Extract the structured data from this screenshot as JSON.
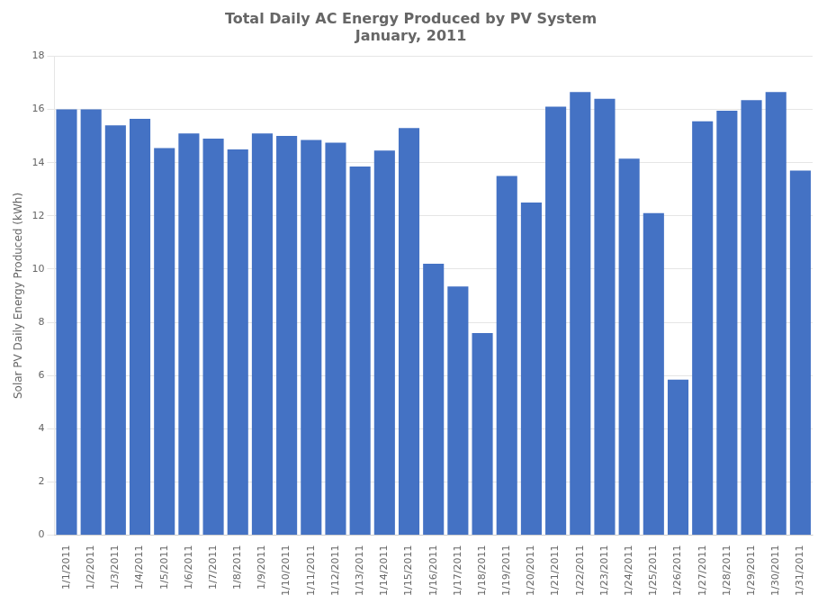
{
  "chart_data": {
    "type": "bar",
    "title": "Total Daily AC Energy Produced by PV System",
    "subtitle": "January, 2011",
    "ylabel": "Solar PV Daily Energy Produced (kWh)",
    "categories": [
      "1/1/2011",
      "1/2/2011",
      "1/3/2011",
      "1/4/2011",
      "1/5/2011",
      "1/6/2011",
      "1/7/2011",
      "1/8/2011",
      "1/9/2011",
      "1/10/2011",
      "1/11/2011",
      "1/12/2011",
      "1/13/2011",
      "1/14/2011",
      "1/15/2011",
      "1/16/2011",
      "1/17/2011",
      "1/18/2011",
      "1/19/2011",
      "1/20/2011",
      "1/21/2011",
      "1/22/2011",
      "1/23/2011",
      "1/24/2011",
      "1/25/2011",
      "1/26/2011",
      "1/27/2011",
      "1/28/2011",
      "1/29/2011",
      "1/30/2011",
      "1/31/2011"
    ],
    "values": [
      16.0,
      16.0,
      15.4,
      15.65,
      14.55,
      15.1,
      14.9,
      14.5,
      15.1,
      15.0,
      14.85,
      14.75,
      13.85,
      14.45,
      15.3,
      10.2,
      9.35,
      7.6,
      13.5,
      12.5,
      16.1,
      16.65,
      16.4,
      14.15,
      12.1,
      5.85,
      15.55,
      15.95,
      16.35,
      16.65,
      13.7
    ],
    "color": "#4472C4",
    "ylim": [
      0,
      18
    ],
    "yticks": [
      0,
      2,
      4,
      6,
      8,
      10,
      12,
      14,
      16,
      18
    ],
    "grid": true
  }
}
